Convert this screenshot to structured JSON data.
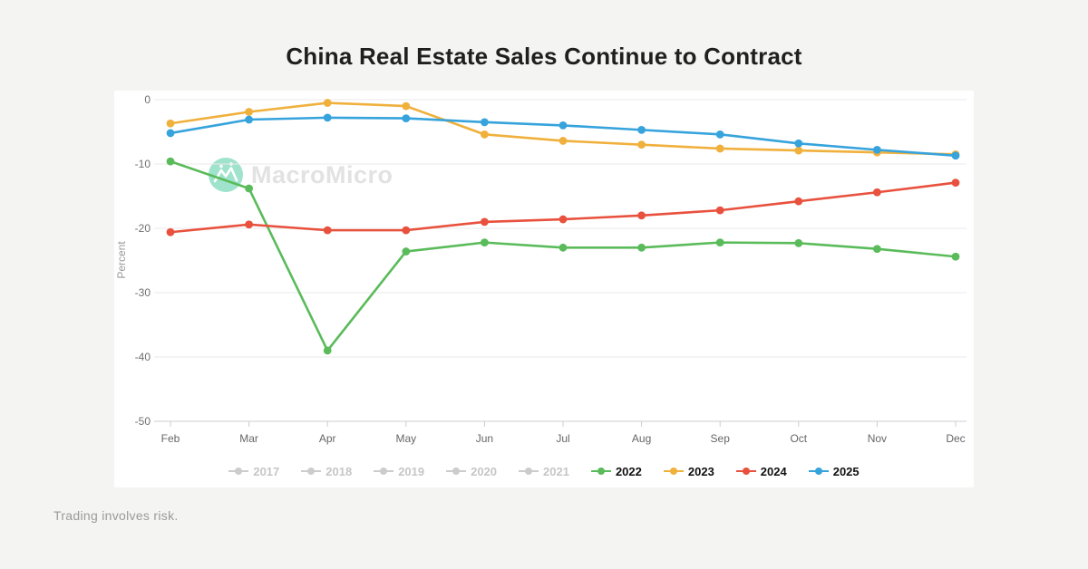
{
  "page": {
    "title": "China Real Estate Sales Continue to Contract",
    "disclaimer": "Trading involves risk.",
    "background": "#f4f4f2",
    "card_background": "#ffffff"
  },
  "watermark": {
    "brand": "MacroMicro",
    "circle_color": "#9fe3cd",
    "glyph_color": "#ffffff",
    "text_color": "#e2e2e2"
  },
  "chart_data": {
    "type": "line",
    "title": "China Real Estate Sales Continue to Contract",
    "xlabel": "",
    "ylabel": "Percent",
    "x": [
      "Feb",
      "Mar",
      "Apr",
      "May",
      "Jun",
      "Jul",
      "Aug",
      "Sep",
      "Oct",
      "Nov",
      "Dec"
    ],
    "ylim": [
      -50,
      0
    ],
    "yticks": [
      0,
      -10,
      -20,
      -30,
      -40,
      -50
    ],
    "grid": true,
    "legend_position": "bottom",
    "series": [
      {
        "name": "2022",
        "color": "#5abb5a",
        "values": [
          -9.6,
          -13.8,
          -39.0,
          -23.6,
          -22.2,
          -23.0,
          -23.0,
          -22.2,
          -22.3,
          -23.2,
          -24.4
        ]
      },
      {
        "name": "2023",
        "color": "#f0b03c",
        "values": [
          -3.7,
          -1.9,
          -0.5,
          -1.0,
          -5.4,
          -6.4,
          -7.0,
          -7.6,
          -7.9,
          -8.2,
          -8.5
        ]
      },
      {
        "name": "2024",
        "color": "#e8513d",
        "values": [
          -20.6,
          -19.4,
          -20.3,
          -20.3,
          -19.0,
          -18.6,
          -18.0,
          -17.2,
          -15.8,
          -14.4,
          -12.9
        ]
      },
      {
        "name": "2025",
        "color": "#36a3dc",
        "values": [
          -5.2,
          -3.1,
          -2.8,
          -2.9,
          -3.5,
          -4.0,
          -4.7,
          -5.4,
          -6.8,
          -7.8,
          -8.7
        ]
      }
    ],
    "legend": [
      {
        "label": "2017",
        "color": "#cccccc",
        "disabled": true
      },
      {
        "label": "2018",
        "color": "#cccccc",
        "disabled": true
      },
      {
        "label": "2019",
        "color": "#cccccc",
        "disabled": true
      },
      {
        "label": "2020",
        "color": "#cccccc",
        "disabled": true
      },
      {
        "label": "2021",
        "color": "#cccccc",
        "disabled": true
      },
      {
        "label": "2022",
        "color": "#5abb5a",
        "disabled": false
      },
      {
        "label": "2023",
        "color": "#f0b03c",
        "disabled": false
      },
      {
        "label": "2024",
        "color": "#e8513d",
        "disabled": false
      },
      {
        "label": "2025",
        "color": "#36a3dc",
        "disabled": false
      }
    ],
    "axis": {
      "tick_label_color": "#707070",
      "x_label_color": "#666666",
      "axis_line_color": "#cccccc",
      "grid_color": "#e9e9e9",
      "ylabel_color": "#999999"
    }
  }
}
